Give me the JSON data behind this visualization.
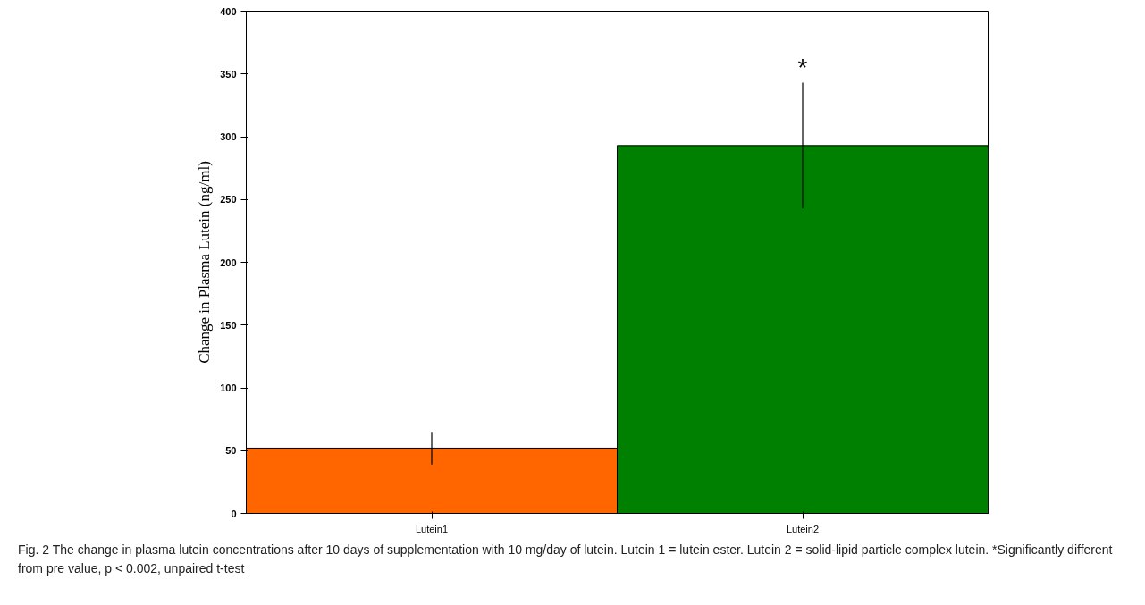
{
  "chart_data": {
    "type": "bar",
    "ylabel": "Change in Plasma Lutein (ng/ml)",
    "categories": [
      "Lutein1",
      "Lutein2"
    ],
    "values": [
      52,
      293
    ],
    "colors": [
      "#ff6600",
      "#008000"
    ],
    "errors": [
      [
        39,
        65
      ],
      [
        243,
        343
      ]
    ],
    "ylim": [
      0,
      400
    ],
    "yticks": [
      0,
      50,
      100,
      150,
      200,
      250,
      300,
      350,
      400
    ],
    "grid": false,
    "annotations": [
      {
        "text": "*",
        "x": "Lutein2",
        "y": 343
      },
      "Fig. 2 The change in plasma lutein concentrations after 10 days of supplementation with 10 mg/day of lutein. Lutein 1 = lutein ester. Lutein 2 = solid-lipid particle complex lutein. *Significantly different from pre value, p < 0.002, unpaired t-test"
    ]
  }
}
